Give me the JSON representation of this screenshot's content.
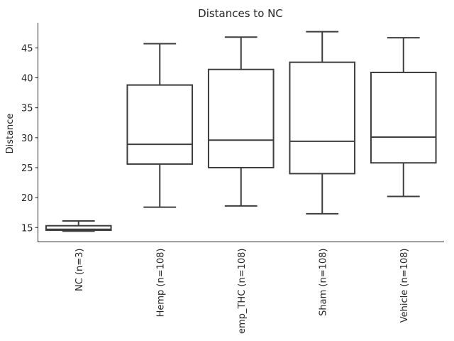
{
  "chart_data": {
    "type": "box",
    "title": "Distances to NC",
    "xlabel": "",
    "ylabel": "Distance",
    "ylim": [
      12.6,
      49.2
    ],
    "yticks": [
      15,
      20,
      25,
      30,
      35,
      40,
      45
    ],
    "grid": false,
    "categories": [
      "NC (n=3)",
      "Hemp (n=108)",
      "emp_THC (n=108)",
      "Sham (n=108)",
      "Vehicle (n=108)"
    ],
    "boxes": [
      {
        "whisker_low": 14.4,
        "q1": 14.55,
        "median": 14.7,
        "q3": 15.3,
        "whisker_high": 16.1
      },
      {
        "whisker_low": 18.4,
        "q1": 25.6,
        "median": 28.9,
        "q3": 38.8,
        "whisker_high": 45.7
      },
      {
        "whisker_low": 18.6,
        "q1": 25.0,
        "median": 29.6,
        "q3": 41.4,
        "whisker_high": 46.8
      },
      {
        "whisker_low": 17.3,
        "q1": 24.0,
        "median": 29.4,
        "q3": 42.6,
        "whisker_high": 47.7
      },
      {
        "whisker_low": 20.2,
        "q1": 25.8,
        "median": 30.1,
        "q3": 40.9,
        "whisker_high": 46.7
      }
    ],
    "colors": {
      "stroke": "#3d3d3d",
      "fill": "#ffffff",
      "axis": "#262626",
      "text": "#262626"
    }
  }
}
